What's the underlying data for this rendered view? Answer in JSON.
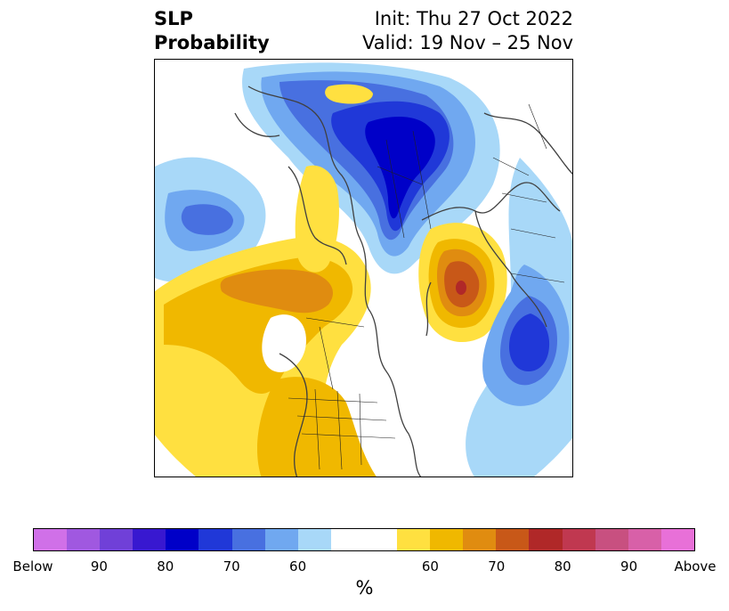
{
  "title": {
    "line1": "SLP",
    "line2": "Probability"
  },
  "subtitle": {
    "init": "Init: Thu 27 Oct 2022",
    "valid": "Valid: 19 Nov – 25 Nov"
  },
  "colorbar": {
    "label": "%",
    "colors": [
      "#d070e8",
      "#a058e0",
      "#7040d8",
      "#3818d0",
      "#0000c8",
      "#2038d8",
      "#4870e0",
      "#70a8f0",
      "#a8d8f8",
      "#ffffff",
      "#ffffff",
      "#ffe040",
      "#f0b800",
      "#e08c10",
      "#c85818",
      "#b02828",
      "#c03850",
      "#c85080",
      "#d860a8",
      "#e870d8"
    ],
    "tick_labels": [
      "Below",
      "90",
      "80",
      "70",
      "60",
      "60",
      "70",
      "80",
      "90",
      "Above"
    ]
  }
}
